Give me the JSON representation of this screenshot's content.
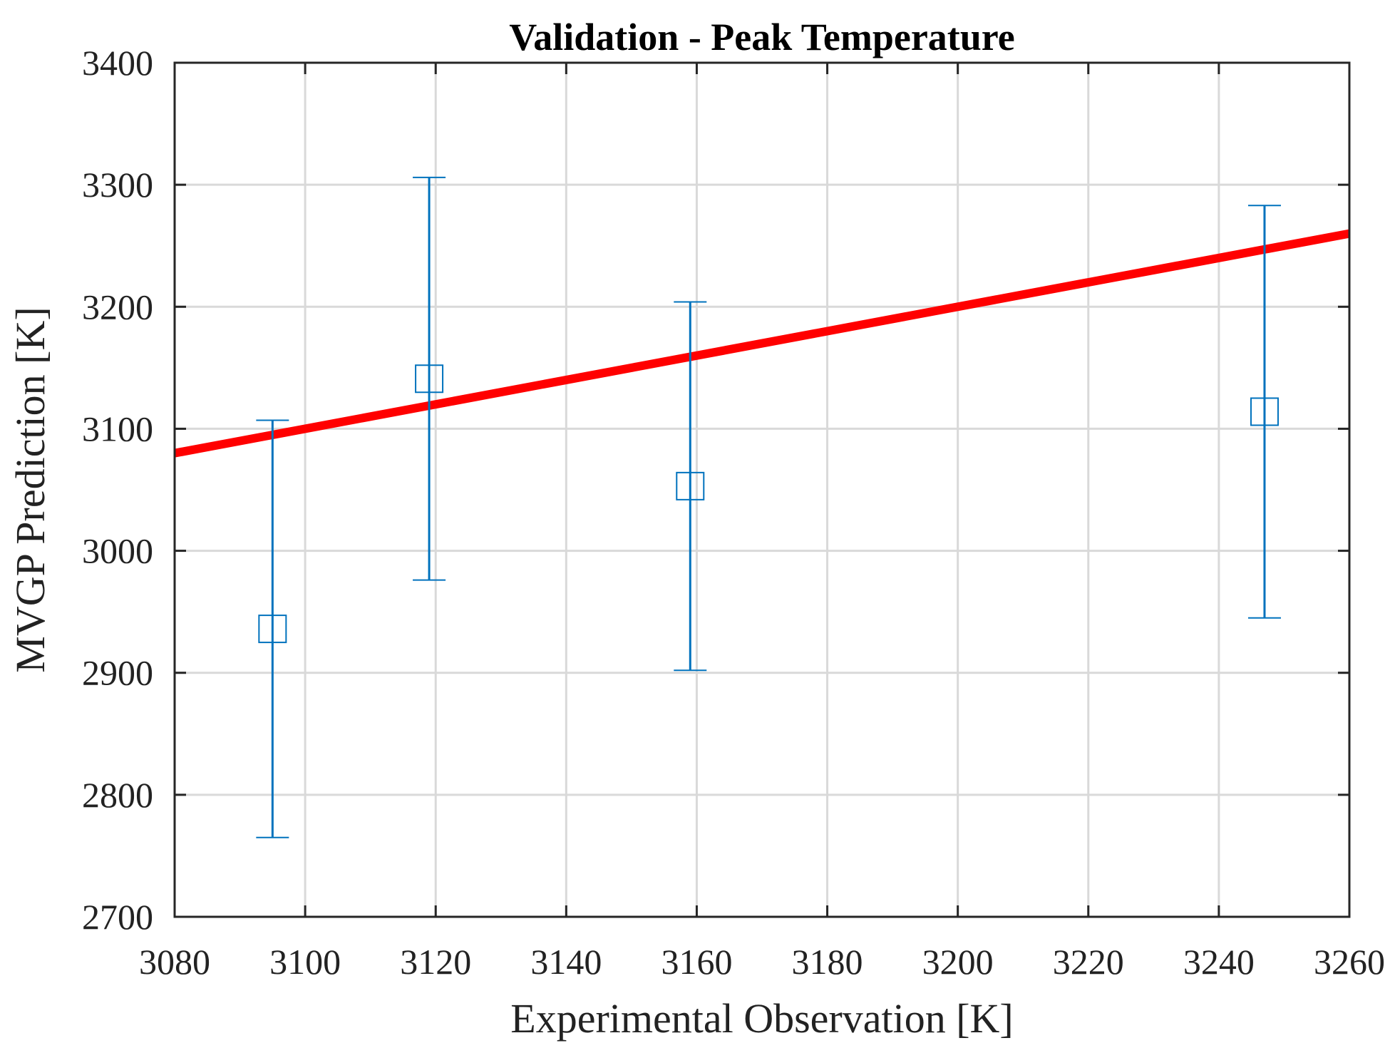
{
  "chart_data": {
    "type": "scatter",
    "title": "Validation - Peak Temperature",
    "xlabel": "Experimental Observation [K]",
    "ylabel": "MVGP Prediction [K]",
    "xlim": [
      3080,
      3260
    ],
    "ylim": [
      2700,
      3400
    ],
    "xticks": [
      3080,
      3100,
      3120,
      3140,
      3160,
      3180,
      3200,
      3220,
      3240,
      3260
    ],
    "yticks": [
      2700,
      2800,
      2900,
      3000,
      3100,
      3200,
      3300,
      3400
    ],
    "grid": true,
    "colors": {
      "points": "#0072bd",
      "reference": "#ff0000",
      "grid": "#d9d9d9",
      "axes": "#262626"
    },
    "series": [
      {
        "marker": "square",
        "points": [
          {
            "x": 3095,
            "y": 2936,
            "lower": 2765,
            "upper": 3107
          },
          {
            "x": 3119,
            "y": 3141,
            "lower": 2976,
            "upper": 3306
          },
          {
            "x": 3159,
            "y": 3053,
            "lower": 2902,
            "upper": 3204
          },
          {
            "x": 3247,
            "y": 3114,
            "lower": 2945,
            "upper": 3283
          }
        ]
      }
    ],
    "reference_line": {
      "type": "identity",
      "x": [
        3080,
        3260
      ],
      "y": [
        3080,
        3260
      ]
    }
  }
}
